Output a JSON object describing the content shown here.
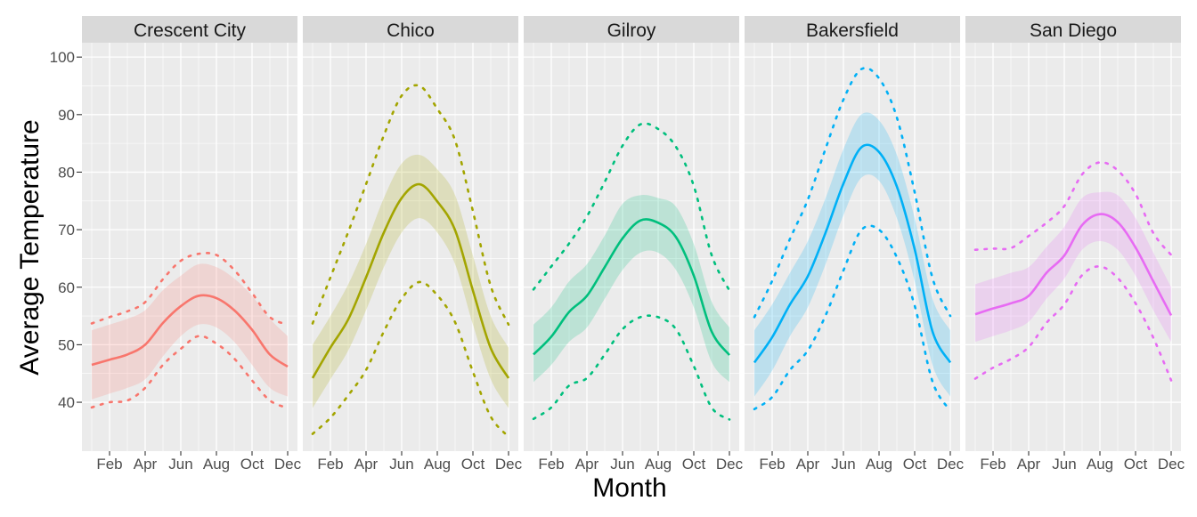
{
  "chart_data": {
    "type": "line",
    "xlabel": "Month",
    "ylabel": "Average Temperature",
    "x_ticks": [
      "Feb",
      "Apr",
      "Jun",
      "Aug",
      "Oct",
      "Dec"
    ],
    "x_tick_months": [
      2,
      4,
      6,
      8,
      10,
      12
    ],
    "xlim": [
      0.45,
      12.55
    ],
    "y_ticks": [
      40,
      50,
      60,
      70,
      80,
      90,
      100
    ],
    "ylim": [
      31.5,
      102.5
    ],
    "grid": true,
    "legend": "none",
    "line_styles": {
      "mean": "solid",
      "bounds": "dotted",
      "band": "shaded ribbon"
    },
    "months": [
      1,
      2,
      3,
      4,
      5,
      6,
      7,
      8,
      9,
      10,
      11,
      12
    ],
    "panels": [
      {
        "title": "Crescent City",
        "color": "#F8766D",
        "mean": [
          46.5,
          47.4,
          48.3,
          50.0,
          53.8,
          56.7,
          58.5,
          58.1,
          56.0,
          52.6,
          48.3,
          46.2
        ],
        "band_low": [
          40.5,
          41.5,
          42.5,
          44.0,
          48.0,
          51.5,
          53.5,
          53.0,
          50.5,
          46.5,
          42.5,
          41.0
        ],
        "band_high": [
          52.5,
          53.5,
          54.5,
          56.0,
          59.5,
          62.0,
          64.0,
          63.5,
          61.5,
          58.5,
          54.5,
          51.5
        ],
        "upper": [
          53.7,
          54.8,
          55.8,
          57.4,
          61.4,
          64.6,
          65.8,
          65.6,
          63.0,
          59.0,
          54.8,
          53.5
        ],
        "lower": [
          39.1,
          40.0,
          40.3,
          42.5,
          46.5,
          49.3,
          51.5,
          50.2,
          47.6,
          43.8,
          40.3,
          39.0
        ]
      },
      {
        "title": "Chico",
        "color": "#A3A500",
        "mean": [
          44.2,
          49.5,
          54.4,
          61.7,
          69.5,
          75.5,
          77.9,
          74.9,
          69.9,
          59.4,
          49.4,
          44.2
        ],
        "band_low": [
          39.0,
          44.0,
          49.0,
          56.0,
          63.5,
          69.5,
          72.0,
          69.5,
          64.0,
          53.5,
          44.0,
          39.0
        ],
        "band_high": [
          50.0,
          55.0,
          60.5,
          67.5,
          75.5,
          81.5,
          83.0,
          80.5,
          76.0,
          65.5,
          55.0,
          49.5
        ],
        "upper": [
          53.7,
          61.7,
          69.6,
          77.9,
          86.4,
          93.3,
          95.0,
          91.0,
          85.5,
          73.2,
          60.2,
          53.5
        ],
        "lower": [
          34.5,
          37.3,
          41.2,
          45.6,
          52.3,
          58.0,
          60.9,
          58.6,
          53.9,
          45.3,
          37.5,
          34.0
        ]
      },
      {
        "title": "Gilroy",
        "color": "#00BF7D",
        "mean": [
          48.3,
          51.4,
          55.7,
          58.5,
          63.5,
          68.5,
          71.6,
          71.2,
          68.7,
          62.0,
          52.3,
          48.2
        ],
        "band_low": [
          43.5,
          46.5,
          50.5,
          53.0,
          58.0,
          63.0,
          66.0,
          66.0,
          63.0,
          56.5,
          47.0,
          43.5
        ],
        "band_high": [
          53.5,
          56.5,
          61.0,
          64.0,
          69.0,
          74.5,
          76.0,
          75.5,
          74.0,
          67.5,
          57.5,
          53.0
        ],
        "upper": [
          59.6,
          63.6,
          67.6,
          72.3,
          78.3,
          84.6,
          88.3,
          87.5,
          84.4,
          77.6,
          65.6,
          59.4
        ],
        "lower": [
          37.1,
          39.1,
          42.9,
          44.2,
          48.3,
          52.7,
          54.8,
          54.8,
          52.7,
          46.3,
          39.1,
          37.0
        ]
      },
      {
        "title": "Bakersfield",
        "color": "#00B0F6",
        "mean": [
          46.9,
          51.3,
          57.0,
          61.9,
          69.5,
          78.0,
          84.3,
          83.5,
          77.5,
          66.6,
          52.3,
          46.9
        ],
        "band_low": [
          41.0,
          45.5,
          51.5,
          56.5,
          64.0,
          72.5,
          79.0,
          78.5,
          72.0,
          61.0,
          46.5,
          41.0
        ],
        "band_high": [
          52.5,
          57.0,
          62.5,
          68.0,
          75.5,
          84.0,
          90.0,
          89.0,
          83.0,
          72.0,
          58.0,
          52.5
        ],
        "upper": [
          54.8,
          61.1,
          68.4,
          75.2,
          84.1,
          92.6,
          97.9,
          96.3,
          89.5,
          76.5,
          61.6,
          55.0
        ],
        "lower": [
          38.8,
          40.9,
          45.6,
          49.0,
          55.1,
          62.9,
          69.9,
          70.0,
          65.2,
          56.8,
          43.6,
          38.5
        ]
      },
      {
        "title": "San Diego",
        "color": "#E76BF3",
        "mean": [
          55.3,
          56.3,
          57.2,
          58.5,
          62.5,
          65.5,
          70.8,
          72.7,
          71.3,
          66.9,
          61.0,
          55.1
        ],
        "band_low": [
          50.5,
          51.5,
          52.5,
          54.0,
          58.0,
          61.5,
          66.5,
          68.0,
          66.5,
          62.0,
          56.0,
          50.5
        ],
        "band_high": [
          60.5,
          61.5,
          62.5,
          63.5,
          67.0,
          70.5,
          75.5,
          76.5,
          76.0,
          72.0,
          66.0,
          60.0
        ],
        "upper": [
          66.5,
          66.7,
          66.8,
          68.9,
          71.2,
          74.1,
          79.6,
          81.7,
          80.3,
          76.2,
          69.4,
          65.6
        ],
        "lower": [
          44.1,
          46.0,
          47.5,
          49.6,
          53.8,
          57.0,
          62.1,
          63.6,
          61.6,
          57.2,
          51.2,
          43.8
        ]
      }
    ]
  }
}
